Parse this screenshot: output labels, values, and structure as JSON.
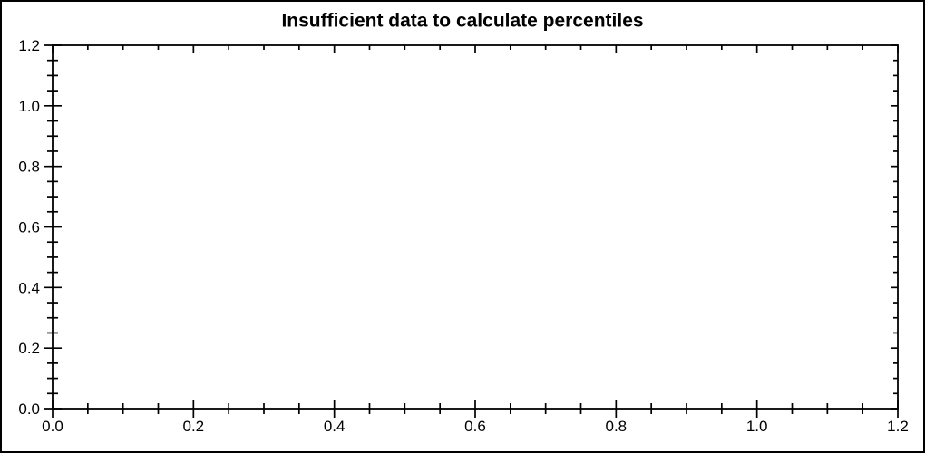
{
  "chart_data": {
    "type": "scatter",
    "title": "Insufficient data to calculate percentiles",
    "x": [],
    "series": [],
    "xlabel": "",
    "ylabel": "",
    "xlim": [
      0.0,
      1.2
    ],
    "ylim": [
      0.0,
      1.2
    ],
    "x_major_ticks": [
      0.0,
      0.2,
      0.4,
      0.6,
      0.8,
      1.0,
      1.2
    ],
    "y_major_ticks": [
      0.0,
      0.2,
      0.4,
      0.6,
      0.8,
      1.0,
      1.2
    ],
    "x_tick_labels": [
      "0.0",
      "0.2",
      "0.4",
      "0.6",
      "0.8",
      "1.0",
      "1.2"
    ],
    "y_tick_labels": [
      "0.0",
      "0.2",
      "0.4",
      "0.6",
      "0.8",
      "1.0",
      "1.2"
    ],
    "minor_tick_interval": 0.05,
    "grid": false,
    "frame": "box",
    "legend": null,
    "data_points": "none"
  },
  "colors": {
    "background": "#ffffff",
    "axis": "#000000",
    "text": "#000000",
    "border": "#000000"
  }
}
